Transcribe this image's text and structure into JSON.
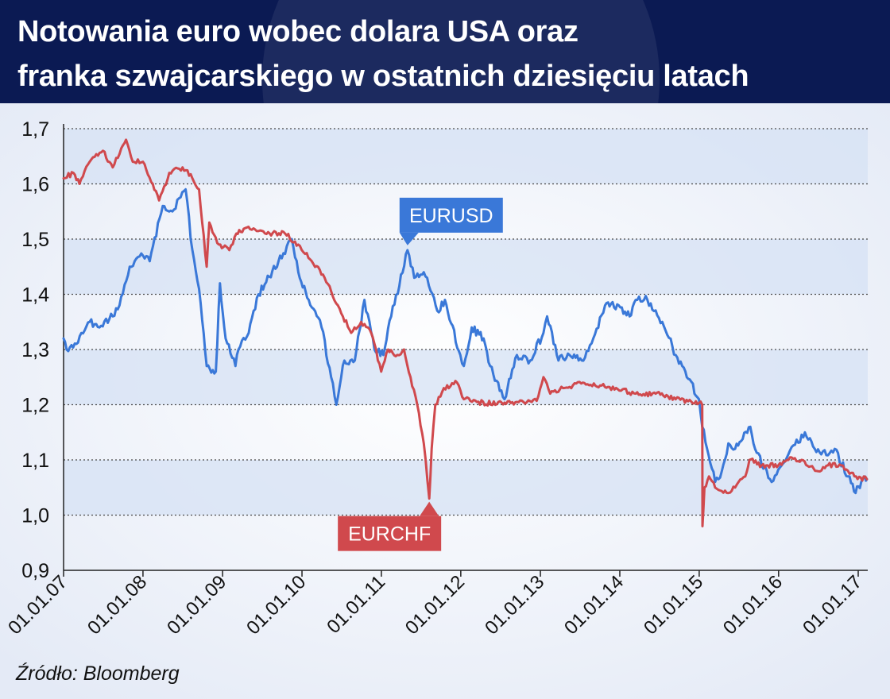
{
  "header": {
    "title_line1": "Notowania euro wobec dolara USA oraz",
    "title_line2": "franka szwajcarskiego w ostatnich dziesięciu latach"
  },
  "source": "Źródło: Bloomberg",
  "colors": {
    "header_bg": "#0b1a53",
    "eurusd": "#3a78d8",
    "eurchf": "#d0494d",
    "band": "#d5e1f4"
  },
  "chart_data": {
    "type": "line",
    "title": "Notowania euro wobec dolara USA oraz franka szwajcarskiego w ostatnich dziesięciu latach",
    "xlabel": "",
    "ylabel": "",
    "ylim": [
      0.9,
      1.7
    ],
    "xlim": [
      "2007-01-01",
      "2017-02-15"
    ],
    "grid": true,
    "y_ticks": [
      "0,9",
      "1,0",
      "1,1",
      "1,2",
      "1,3",
      "1,4",
      "1,5",
      "1,6",
      "1,7"
    ],
    "y_tick_values": [
      0.9,
      1.0,
      1.1,
      1.2,
      1.3,
      1.4,
      1.5,
      1.6,
      1.7
    ],
    "x_ticks": [
      "01.01.07",
      "01.01.08",
      "01.01.09",
      "01.01.10",
      "01.01.11",
      "01.01.12",
      "01.01.13",
      "01.01.14",
      "01.01.15",
      "01.01.16",
      "01.01.17"
    ],
    "x_tick_values": [
      "2007-01-01",
      "2008-01-01",
      "2009-01-01",
      "2010-01-01",
      "2011-01-01",
      "2012-01-01",
      "2013-01-01",
      "2014-01-01",
      "2015-01-01",
      "2016-01-01",
      "2017-01-01"
    ],
    "series": [
      {
        "name": "EURUSD",
        "color": "#3a78d8",
        "points": [
          [
            "2007-01-01",
            1.32
          ],
          [
            "2007-01-15",
            1.3
          ],
          [
            "2007-03-01",
            1.31
          ],
          [
            "2007-05-01",
            1.35
          ],
          [
            "2007-06-15",
            1.34
          ],
          [
            "2007-08-15",
            1.36
          ],
          [
            "2007-09-15",
            1.38
          ],
          [
            "2007-11-01",
            1.45
          ],
          [
            "2008-01-01",
            1.47
          ],
          [
            "2008-02-01",
            1.46
          ],
          [
            "2008-04-01",
            1.56
          ],
          [
            "2008-05-15",
            1.55
          ],
          [
            "2008-07-15",
            1.59
          ],
          [
            "2008-08-15",
            1.48
          ],
          [
            "2008-09-15",
            1.41
          ],
          [
            "2008-10-20",
            1.27
          ],
          [
            "2008-12-01",
            1.26
          ],
          [
            "2008-12-20",
            1.42
          ],
          [
            "2009-01-15",
            1.32
          ],
          [
            "2009-03-01",
            1.27
          ],
          [
            "2009-03-15",
            1.3
          ],
          [
            "2009-05-01",
            1.33
          ],
          [
            "2009-06-15",
            1.4
          ],
          [
            "2009-09-15",
            1.46
          ],
          [
            "2009-11-15",
            1.5
          ],
          [
            "2009-12-15",
            1.44
          ],
          [
            "2010-02-01",
            1.39
          ],
          [
            "2010-04-01",
            1.34
          ],
          [
            "2010-05-15",
            1.25
          ],
          [
            "2010-06-08",
            1.2
          ],
          [
            "2010-07-15",
            1.28
          ],
          [
            "2010-09-01",
            1.28
          ],
          [
            "2010-10-15",
            1.39
          ],
          [
            "2010-11-30",
            1.3
          ],
          [
            "2011-01-10",
            1.29
          ],
          [
            "2011-02-15",
            1.36
          ],
          [
            "2011-05-01",
            1.48
          ],
          [
            "2011-06-01",
            1.43
          ],
          [
            "2011-07-15",
            1.44
          ],
          [
            "2011-09-15",
            1.37
          ],
          [
            "2011-10-20",
            1.39
          ],
          [
            "2011-12-30",
            1.29
          ],
          [
            "2012-01-15",
            1.27
          ],
          [
            "2012-02-20",
            1.34
          ],
          [
            "2012-04-15",
            1.32
          ],
          [
            "2012-05-15",
            1.27
          ],
          [
            "2012-07-20",
            1.21
          ],
          [
            "2012-09-15",
            1.29
          ],
          [
            "2012-11-15",
            1.28
          ],
          [
            "2013-01-15",
            1.33
          ],
          [
            "2013-02-01",
            1.36
          ],
          [
            "2013-03-25",
            1.28
          ],
          [
            "2013-05-15",
            1.29
          ],
          [
            "2013-07-10",
            1.28
          ],
          [
            "2013-09-01",
            1.32
          ],
          [
            "2013-10-25",
            1.38
          ],
          [
            "2013-12-27",
            1.38
          ],
          [
            "2014-02-15",
            1.36
          ],
          [
            "2014-03-15",
            1.39
          ],
          [
            "2014-05-08",
            1.39
          ],
          [
            "2014-07-15",
            1.35
          ],
          [
            "2014-09-15",
            1.29
          ],
          [
            "2014-10-15",
            1.27
          ],
          [
            "2014-12-31",
            1.21
          ],
          [
            "2015-01-15",
            1.16
          ],
          [
            "2015-03-15",
            1.06
          ],
          [
            "2015-04-15",
            1.08
          ],
          [
            "2015-05-15",
            1.13
          ],
          [
            "2015-06-15",
            1.12
          ],
          [
            "2015-08-24",
            1.16
          ],
          [
            "2015-09-15",
            1.12
          ],
          [
            "2015-11-30",
            1.06
          ],
          [
            "2016-01-15",
            1.09
          ],
          [
            "2016-02-15",
            1.11
          ],
          [
            "2016-05-01",
            1.15
          ],
          [
            "2016-06-15",
            1.12
          ],
          [
            "2016-07-15",
            1.11
          ],
          [
            "2016-09-15",
            1.12
          ],
          [
            "2016-11-15",
            1.07
          ],
          [
            "2016-12-20",
            1.04
          ],
          [
            "2017-01-15",
            1.06
          ],
          [
            "2017-02-01",
            1.07
          ],
          [
            "2017-02-10",
            1.065
          ]
        ]
      },
      {
        "name": "EURCHF",
        "color": "#d0494d",
        "points": [
          [
            "2007-01-01",
            1.61
          ],
          [
            "2007-02-15",
            1.62
          ],
          [
            "2007-03-15",
            1.6
          ],
          [
            "2007-05-01",
            1.64
          ],
          [
            "2007-07-01",
            1.66
          ],
          [
            "2007-08-15",
            1.63
          ],
          [
            "2007-10-01",
            1.67
          ],
          [
            "2007-10-15",
            1.68
          ],
          [
            "2007-11-15",
            1.64
          ],
          [
            "2008-01-01",
            1.64
          ],
          [
            "2008-02-15",
            1.6
          ],
          [
            "2008-03-15",
            1.57
          ],
          [
            "2008-05-01",
            1.62
          ],
          [
            "2008-07-01",
            1.63
          ],
          [
            "2008-08-15",
            1.61
          ],
          [
            "2008-09-15",
            1.59
          ],
          [
            "2008-10-20",
            1.45
          ],
          [
            "2008-11-01",
            1.53
          ],
          [
            "2008-12-15",
            1.49
          ],
          [
            "2009-02-01",
            1.48
          ],
          [
            "2009-03-05",
            1.51
          ],
          [
            "2009-04-15",
            1.52
          ],
          [
            "2009-07-15",
            1.51
          ],
          [
            "2009-10-15",
            1.51
          ],
          [
            "2009-12-15",
            1.49
          ],
          [
            "2010-02-15",
            1.46
          ],
          [
            "2010-04-15",
            1.43
          ],
          [
            "2010-06-15",
            1.38
          ],
          [
            "2010-08-15",
            1.33
          ],
          [
            "2010-09-30",
            1.35
          ],
          [
            "2010-11-15",
            1.33
          ],
          [
            "2010-12-31",
            1.26
          ],
          [
            "2011-02-01",
            1.3
          ],
          [
            "2011-03-15",
            1.29
          ],
          [
            "2011-04-15",
            1.3
          ],
          [
            "2011-05-15",
            1.25
          ],
          [
            "2011-06-15",
            1.2
          ],
          [
            "2011-07-15",
            1.13
          ],
          [
            "2011-08-09",
            1.03
          ],
          [
            "2011-08-20",
            1.12
          ],
          [
            "2011-09-06",
            1.2
          ],
          [
            "2011-10-15",
            1.23
          ],
          [
            "2011-12-15",
            1.24
          ],
          [
            "2012-01-15",
            1.21
          ],
          [
            "2012-03-15",
            1.205
          ],
          [
            "2012-06-15",
            1.201
          ],
          [
            "2012-09-15",
            1.205
          ],
          [
            "2012-12-15",
            1.207
          ],
          [
            "2013-01-15",
            1.25
          ],
          [
            "2013-02-15",
            1.22
          ],
          [
            "2013-04-15",
            1.23
          ],
          [
            "2013-07-15",
            1.24
          ],
          [
            "2013-11-15",
            1.232
          ],
          [
            "2014-03-15",
            1.22
          ],
          [
            "2014-06-15",
            1.22
          ],
          [
            "2014-09-15",
            1.21
          ],
          [
            "2014-12-31",
            1.203
          ],
          [
            "2015-01-15",
            1.2
          ],
          [
            "2015-01-16",
            0.98
          ],
          [
            "2015-01-25",
            1.05
          ],
          [
            "2015-02-15",
            1.07
          ],
          [
            "2015-03-15",
            1.05
          ],
          [
            "2015-05-15",
            1.04
          ],
          [
            "2015-06-15",
            1.05
          ],
          [
            "2015-08-01",
            1.07
          ],
          [
            "2015-08-20",
            1.1
          ],
          [
            "2015-10-15",
            1.09
          ],
          [
            "2015-12-31",
            1.09
          ],
          [
            "2016-02-15",
            1.1
          ],
          [
            "2016-04-15",
            1.1
          ],
          [
            "2016-06-24",
            1.08
          ],
          [
            "2016-08-15",
            1.09
          ],
          [
            "2016-10-15",
            1.09
          ],
          [
            "2016-12-15",
            1.07
          ],
          [
            "2017-02-10",
            1.065
          ]
        ]
      }
    ],
    "annotations": [
      {
        "text": "EURUSD",
        "series": "EURUSD",
        "x": "2011-05-01",
        "y": 1.48
      },
      {
        "text": "EURCHF",
        "series": "EURCHF",
        "x": "2011-08-09",
        "y": 1.03
      }
    ]
  }
}
